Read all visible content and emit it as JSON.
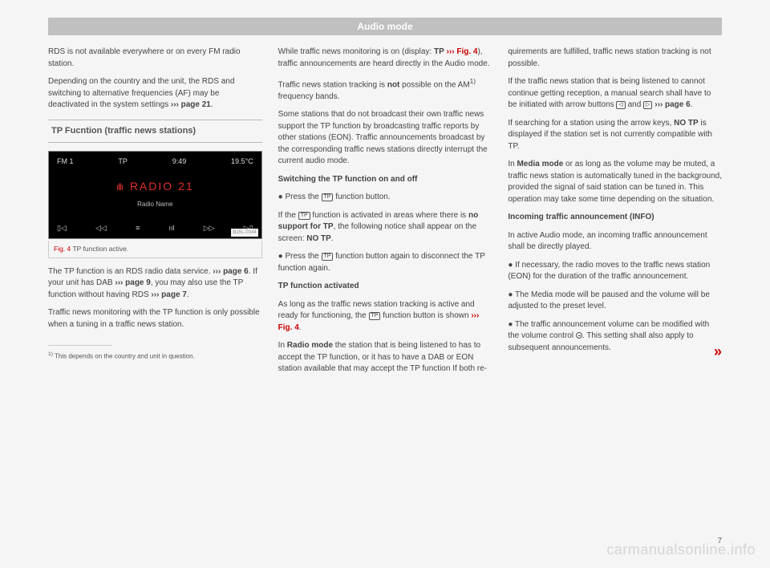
{
  "header": {
    "title": "Audio mode"
  },
  "col1": {
    "p1": "RDS is not available everywhere or on every FM radio station.",
    "p2a": "Depending on the country and the unit, the RDS and switching to alternative frequencies (AF) may be deactivated in the system settings ",
    "p2b": "››› page 21",
    "p2c": ".",
    "subhead": "TP Fucntion (traffic news stations)",
    "figure": {
      "fm": "FM 1",
      "tp": "TP",
      "time": "9:49",
      "temp": "19.5°C",
      "station": "RADIO 21",
      "name": "Radio Name",
      "id": "B15L-0344"
    },
    "caption_ref": "Fig. 4",
    "caption_text": "  TP function active.",
    "p3a": "The TP function is an RDS radio data service. ",
    "p3b": "››› page 6",
    "p3c": ". If your unit has DAB ",
    "p3d": "››› page 9",
    "p3e": ", you may also use the TP function without having RDS ",
    "p3f": "››› page 7",
    "p3g": ".",
    "p4": "Traffic news monitoring with the TP function is only possible when a tuning in a traffic news station.",
    "footnote_num": "1)",
    "footnote": " This depends on the country and unit in question."
  },
  "col2": {
    "p1a": "While traffic news monitoring is on (display: ",
    "p1b": "TP",
    "p1c": " ",
    "p1d": "››› Fig. 4",
    "p1e": "), traffic announcements are heard directly in the Audio mode.",
    "p2a": "Traffic news station tracking is ",
    "p2b": "not",
    "p2c": " possible on the AM",
    "p2d": "1)",
    "p2e": " frequency bands.",
    "p3": "Some stations that do not broadcast their own traffic news support the TP function by broadcasting traffic reports by other stations (EON). Traffic announcements broadcast by the corresponding traffic news stations directly interrupt the current audio mode.",
    "h1": "Switching the TP function on and off",
    "p4a": "● Press the ",
    "p4b": " function button.",
    "p5a": "If the ",
    "p5b": " function is activated in areas where there is ",
    "p5c": "no support for TP",
    "p5d": ", the following notice shall appear on the screen: ",
    "p5e": "NO  TP",
    "p5f": ".",
    "p6a": "● Press the ",
    "p6b": " function button again to disconnect the TP function again.",
    "h2": "TP function activated",
    "p7a": "As long as the traffic news station tracking is active and ready for functioning, the ",
    "p7b": " function button is shown ",
    "p7c": "››› Fig. 4",
    "p7d": ".",
    "p8a": "In ",
    "p8b": "Radio mode",
    "p8c": " the station that is being listened to has to accept the TP function, or it has to have a DAB or EON station available that may accept the TP function If both re-"
  },
  "col3": {
    "p1": "quirements are fulfilled, traffic news station tracking is not possible.",
    "p2a": "If the traffic news station that is being listened to cannot continue getting reception, a manual search shall have to be initiated with arrow buttons ",
    "p2b": " and ",
    "p2c": " ",
    "p2d": "››› page 6",
    "p2e": ".",
    "p3a": "If searching for a station using the arrow keys, ",
    "p3b": "NO  TP",
    "p3c": " is displayed if the station set is not currently compatible with TP.",
    "p4a": "In ",
    "p4b": "Media mode",
    "p4c": " or as long as the volume may be muted, a traffic news station is automatically tuned in the background, provided the signal of said station can be tuned in. This operation may take some time depending on the situation.",
    "h1": "Incoming traffic announcement (INFO)",
    "p5": "In active Audio mode, an incoming traffic announcement shall be directly played.",
    "p6": "● If necessary, the radio moves to the traffic news station (EON) for the duration of the traffic announcement.",
    "p7": "● The Media mode will be paused and the volume will be adjusted to the preset level.",
    "p8a": "● The traffic announcement volume can be modified with the volume control ",
    "p8b": ". This setting shall also apply to subsequent announcements.",
    "continue": "»"
  },
  "page_num": "7",
  "watermark": "carmanualsonline.info",
  "tp_icon": "TP",
  "arrow_left": "◁",
  "arrow_right": "▷"
}
